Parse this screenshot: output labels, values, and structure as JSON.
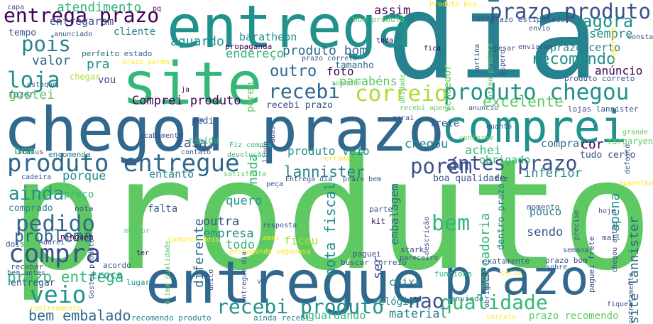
{
  "palette": {
    "dark_purple": "#440154",
    "indigo": "#3b528b",
    "slate_blue": "#31688e",
    "teal": "#21918c",
    "sea_green": "#26828e",
    "green": "#5ec962",
    "bright_green": "#35b779",
    "yellow_green": "#addc30",
    "yellow": "#fde725",
    "background": "#ffffff"
  },
  "words": [
    {
      "text": "produto",
      "weight": 1.0,
      "color": "#5ec962"
    },
    {
      "text": "dia",
      "weight": 0.98,
      "color": "#26828e"
    },
    {
      "text": "entregue",
      "weight": 0.6,
      "color": "#31688e"
    },
    {
      "text": "chegou prazo",
      "weight": 0.58,
      "color": "#31688e"
    },
    {
      "text": "entrega",
      "weight": 0.52,
      "color": "#21918c"
    },
    {
      "text": "prazo",
      "weight": 0.52,
      "color": "#31688e"
    },
    {
      "text": "site",
      "weight": 0.5,
      "color": "#35b779"
    },
    {
      "text": "comprei",
      "weight": 0.48,
      "color": "#21918c"
    },
    {
      "text": "produto chegou",
      "weight": 0.28,
      "color": "#21918c"
    },
    {
      "text": "produto entregue",
      "weight": 0.28,
      "color": "#31688e"
    },
    {
      "text": "entrega prazo",
      "weight": 0.25,
      "color": "#440154"
    },
    {
      "text": "prazo produto",
      "weight": 0.23,
      "color": "#3b528b"
    },
    {
      "text": "compra",
      "weight": 0.23,
      "color": "#3b528b"
    },
    {
      "text": "veio",
      "weight": 0.22,
      "color": "#21918c"
    },
    {
      "text": "recebi",
      "weight": 0.22,
      "color": "#31688e"
    },
    {
      "text": "recebi produto",
      "weight": 0.22,
      "color": "#21918c"
    },
    {
      "text": "correio",
      "weight": 0.21,
      "color": "#addc30"
    },
    {
      "text": "qualidade",
      "weight": 0.2,
      "color": "#35b779"
    },
    {
      "text": "pedido",
      "weight": 0.2,
      "color": "#31688e"
    },
    {
      "text": "loja",
      "weight": 0.19,
      "color": "#21918c"
    },
    {
      "text": "pois",
      "weight": 0.18,
      "color": "#26828e"
    },
    {
      "text": "ainda",
      "weight": 0.17,
      "color": "#21918c"
    },
    {
      "text": "porém",
      "weight": 0.17,
      "color": "#3b528b"
    },
    {
      "text": "antes prazo",
      "weight": 0.16,
      "color": "#3b528b"
    },
    {
      "text": "bem",
      "weight": 0.16,
      "color": "#35b779"
    },
    {
      "text": "nao",
      "weight": 0.16,
      "color": "#3b528b"
    },
    {
      "text": "agora",
      "weight": 0.15,
      "color": "#21918c"
    },
    {
      "text": "recomendo",
      "weight": 0.14,
      "color": "#21918c"
    },
    {
      "text": "bem embalado",
      "weight": 0.13,
      "color": "#31688e"
    },
    {
      "text": "problema",
      "weight": 0.13,
      "color": "#31688e"
    },
    {
      "text": "outro",
      "weight": 0.13,
      "color": "#31688e"
    },
    {
      "text": "excelente",
      "weight": 0.12,
      "color": "#5ec962"
    },
    {
      "text": "lannister",
      "weight": 0.12,
      "color": "#26828e"
    },
    {
      "text": "prazo entrega",
      "weight": 0.12,
      "color": "#35b779"
    },
    {
      "text": "nota fiscal",
      "weight": 0.12,
      "color": "#21918c"
    },
    {
      "text": "diferente",
      "weight": 0.12,
      "color": "#31688e"
    },
    {
      "text": "atendimento",
      "weight": 0.11,
      "color": "#35b779"
    },
    {
      "text": "assim",
      "weight": 0.11,
      "color": "#440154"
    },
    {
      "text": "pra",
      "weight": 0.11,
      "color": "#21918c"
    },
    {
      "text": "valor",
      "weight": 0.11,
      "color": "#31688e"
    },
    {
      "text": "gostei",
      "weight": 0.11,
      "color": "#5ec962"
    },
    {
      "text": "Comprei produto",
      "weight": 0.11,
      "color": "#440154"
    },
    {
      "text": "aguardo",
      "weight": 0.11,
      "color": "#21918c"
    },
    {
      "text": "entregaram",
      "weight": 0.11,
      "color": "#3b528b"
    },
    {
      "text": "produto bom",
      "weight": 0.11,
      "color": "#31688e"
    },
    {
      "text": "foto",
      "weight": 0.11,
      "color": "#440154"
    },
    {
      "text": "parabéns",
      "weight": 0.11,
      "color": "#5ec962"
    },
    {
      "text": "sempre",
      "weight": 0.11,
      "color": "#21918c"
    },
    {
      "text": "anúncio",
      "weight": 0.11,
      "color": "#440154"
    },
    {
      "text": "produto veio",
      "weight": 0.1,
      "color": "#21918c"
    },
    {
      "text": "inferior",
      "weight": 0.1,
      "color": "#26828e"
    },
    {
      "text": "apena",
      "weight": 0.1,
      "color": "#21918c"
    },
    {
      "text": "site lannister",
      "weight": 0.1,
      "color": "#31688e"
    },
    {
      "text": "mercadoria",
      "weight": 0.1,
      "color": "#35b779"
    },
    {
      "text": "embalagem",
      "weight": 0.1,
      "color": "#31688e"
    },
    {
      "text": "casa",
      "weight": 0.1,
      "color": "#3b528b"
    },
    {
      "text": "chegou",
      "weight": 0.1,
      "color": "#26828e"
    },
    {
      "text": "achei",
      "weight": 0.1,
      "color": "#35b779"
    },
    {
      "text": "material",
      "weight": 0.1,
      "color": "#26828e"
    },
    {
      "text": "aguardando",
      "weight": 0.09,
      "color": "#35b779"
    },
    {
      "text": "empresa",
      "weight": 0.09,
      "color": "#21918c"
    },
    {
      "text": "todo",
      "weight": 0.09,
      "color": "#35b779"
    },
    {
      "text": "outra",
      "weight": 0.09,
      "color": "#3b528b"
    },
    {
      "text": "quero",
      "weight": 0.09,
      "color": "#21918c"
    },
    {
      "text": "ficou",
      "weight": 0.09,
      "color": "#addc30"
    },
    {
      "text": "sendo",
      "weight": 0.09,
      "color": "#3b528b"
    },
    {
      "text": "pouco",
      "weight": 0.08,
      "color": "#26828e"
    },
    {
      "text": "cor",
      "weight": 0.08,
      "color": "#440154"
    },
    {
      "text": "obrigado",
      "weight": 0.08,
      "color": "#35b779"
    },
    {
      "text": "endereço",
      "weight": 0.08,
      "color": "#35b779"
    },
    {
      "text": "entanto",
      "weight": 0.08,
      "color": "#26828e"
    },
    {
      "text": "porque",
      "weight": 0.08,
      "color": "#21918c"
    },
    {
      "text": "caixa",
      "weight": 0.08,
      "color": "#26828e"
    },
    {
      "text": "ser",
      "weight": 0.08,
      "color": "#3b528b"
    },
    {
      "text": "nada",
      "weight": 0.08,
      "color": "#35b779"
    },
    {
      "text": "porem",
      "weight": 0.08,
      "color": "#5ec962"
    },
    {
      "text": "vendedor",
      "weight": 0.08,
      "color": "#5ec962"
    },
    {
      "text": "baratheon",
      "weight": 0.08,
      "color": "#21918c"
    },
    {
      "text": "tamanho",
      "weight": 0.08,
      "color": "#31688e"
    },
    {
      "text": "prazo certo",
      "weight": 0.08,
      "color": "#26828e"
    },
    {
      "text": "prazo recomendo",
      "weight": 0.08,
      "color": "#5ec962"
    },
    {
      "text": "relógio",
      "weight": 0.08,
      "color": "#21918c"
    },
    {
      "text": "comprado",
      "weight": 0.07,
      "color": "#26828e"
    },
    {
      "text": "cliente",
      "weight": 0.07,
      "color": "#26828e"
    },
    {
      "text": "tempo",
      "weight": 0.07,
      "color": "#3b528b"
    },
    {
      "text": "vou",
      "weight": 0.07,
      "color": "#3b528b"
    },
    {
      "text": "bom",
      "weight": 0.07,
      "color": "#35b779"
    },
    {
      "text": "preço",
      "weight": 0.07,
      "color": "#35b779"
    },
    {
      "text": "pedi",
      "weight": 0.07,
      "color": "#3b528b"
    },
    {
      "text": "falta",
      "weight": 0.07,
      "color": "#3b528b"
    },
    {
      "text": "rápido",
      "weight": 0.06,
      "color": "#35b779"
    },
    {
      "text": "comprar",
      "weight": 0.07,
      "color": "#31688e"
    },
    {
      "text": "frete",
      "weight": 0.07,
      "color": "#3b528b"
    },
    {
      "text": "tudo certo",
      "weight": 0.06,
      "color": "#3b528b"
    },
    {
      "text": "troca",
      "weight": 0.06,
      "color": "#21918c"
    },
    {
      "text": "entregar",
      "weight": 0.06,
      "color": "#3b528b"
    },
    {
      "text": "chegar",
      "weight": 0.06,
      "color": "#addc30"
    },
    {
      "text": "fazer",
      "weight": 0.06,
      "color": "#31688e"
    },
    {
      "text": "perfeito estado",
      "weight": 0.06,
      "color": "#31688e"
    },
    {
      "text": "targaryen",
      "weight": 0.06,
      "color": "#5ec962"
    },
    {
      "text": "dentro prazo",
      "weight": 0.06,
      "color": "#26828e"
    },
    {
      "text": "boa qualidade",
      "weight": 0.06,
      "color": "#3b528b"
    },
    {
      "text": "recebi prazo",
      "weight": 0.06,
      "color": "#3b528b"
    },
    {
      "text": "encomenda",
      "weight": 0.05,
      "color": "#26828e"
    },
    {
      "text": "momento",
      "weight": 0.05,
      "color": "#3b528b"
    },
    {
      "text": "produto correto",
      "weight": 0.05,
      "color": "#3b528b"
    },
    {
      "text": "stark",
      "weight": 0.05,
      "color": "#3b528b"
    },
    {
      "text": "exatamente",
      "weight": 0.05,
      "color": "#3b528b"
    },
    {
      "text": "prazo bom",
      "weight": 0.05,
      "color": "#3b528b"
    },
    {
      "text": "buscar correio",
      "weight": 0.05,
      "color": "#3b528b"
    },
    {
      "text": "paguei frete",
      "weight": 0.05,
      "color": "#3b528b"
    },
    {
      "text": "funciona",
      "weight": 0.05,
      "color": "#35b779"
    },
    {
      "text": "enviado",
      "weight": 0.05,
      "color": "#26828e"
    },
    {
      "text": "ainda recebi",
      "weight": 0.05,
      "color": "#26828e"
    },
    {
      "text": "recomendo produto",
      "weight": 0.05,
      "color": "#26828e"
    },
    {
      "text": "prazo estipulado",
      "weight": 0.05,
      "color": "#3b528b"
    },
    {
      "text": "bom produto",
      "weight": 0.05,
      "color": "#5ec962"
    },
    {
      "text": "lojas lannister",
      "weight": 0.05,
      "color": "#3b528b"
    },
    {
      "text": "propaganda",
      "weight": 0.05,
      "color": "#440154"
    },
    {
      "text": "acordo",
      "weight": 0.05,
      "color": "#3b528b"
    },
    {
      "text": "lugar",
      "weight": 0.05,
      "color": "#21918c"
    },
    {
      "text": "receber",
      "weight": 0.05,
      "color": "#3b528b"
    },
    {
      "text": "dois",
      "weight": 0.05,
      "color": "#3b528b"
    },
    {
      "text": "ninguém",
      "weight": 0.05,
      "color": "#440154"
    },
    {
      "text": "nota",
      "weight": 0.05,
      "color": "#3b528b"
    },
    {
      "text": "kit",
      "weight": 0.05,
      "color": "#440154"
    },
    {
      "text": "parte",
      "weight": 0.05,
      "color": "#3b528b"
    },
    {
      "text": "paguei",
      "weight": 0.05,
      "color": "#3b528b"
    },
    {
      "text": "mail",
      "weight": 0.05,
      "color": "#3b528b"
    },
    {
      "text": "fiz",
      "weight": 0.05,
      "color": "#3b528b"
    },
    {
      "text": "peça",
      "weight": 0.05,
      "color": "#3b528b"
    },
    {
      "text": "capa",
      "weight": 0.04,
      "color": "#3b528b"
    },
    {
      "text": "pq",
      "weight": 0.04,
      "color": "#440154"
    },
    {
      "text": "anunciado",
      "weight": 0.04,
      "color": "#3b528b"
    },
    {
      "text": "Produto boa",
      "weight": 0.04,
      "color": "#fde725"
    },
    {
      "text": "tudo",
      "weight": 0.04,
      "color": "#3b528b"
    },
    {
      "text": "envio",
      "weight": 0.04,
      "color": "#3b528b"
    },
    {
      "text": "consta",
      "weight": 0.04,
      "color": "#3b528b"
    },
    {
      "text": "esperava",
      "weight": 0.04,
      "color": "#fde725"
    },
    {
      "text": "Apesar",
      "weight": 0.04,
      "color": "#3b528b"
    },
    {
      "text": "enviaram",
      "weight": 0.04,
      "color": "#3b528b"
    },
    {
      "text": "Espero",
      "weight": 0.04,
      "color": "#3b528b"
    },
    {
      "text": "fica",
      "weight": 0.04,
      "color": "#440154"
    },
    {
      "text": "toda",
      "weight": 0.04,
      "color": "#440154"
    },
    {
      "text": "prazo correto",
      "weight": 0.04,
      "color": "#3b528b"
    },
    {
      "text": "prazo porém",
      "weight": 0.04,
      "color": "#fde725"
    },
    {
      "text": "estoque",
      "weight": 0.04,
      "color": "#3b528b"
    },
    {
      "text": "ja",
      "weight": 0.04,
      "color": "#440154"
    },
    {
      "text": "somente",
      "weight": 0.04,
      "color": "#5ec962"
    },
    {
      "text": "unidade",
      "weight": 0.04,
      "color": "#5ec962"
    },
    {
      "text": "recebi apenas",
      "weight": 0.04,
      "color": "#5ec962"
    },
    {
      "text": "anuncio",
      "weight": 0.04,
      "color": "#3b528b"
    },
    {
      "text": "quanto",
      "weight": 0.04,
      "color": "#3b528b"
    },
    {
      "text": "conforme",
      "weight": 0.04,
      "color": "#5ec962"
    },
    {
      "text": "grande",
      "weight": 0.04,
      "color": "#5ec962"
    },
    {
      "text": "defeito",
      "weight": 0.04,
      "color": "#3b528b"
    },
    {
      "text": "contato",
      "weight": 0.04,
      "color": "#3b528b"
    },
    {
      "text": "Fiz compra",
      "weight": 0.04,
      "color": "#35b779"
    },
    {
      "text": "devolução",
      "weight": 0.04,
      "color": "#35b779"
    },
    {
      "text": "errado",
      "weight": 0.04,
      "color": "#fde725"
    },
    {
      "text": "gerai",
      "weight": 0.04,
      "color": "#3b528b"
    },
    {
      "text": "status",
      "weight": 0.04,
      "color": "#3b528b"
    },
    {
      "text": "acabamento",
      "weight": 0.04,
      "color": "#3b528b"
    },
    {
      "text": "cadeira",
      "weight": 0.04,
      "color": "#3b528b"
    },
    {
      "text": "satisfeita",
      "weight": 0.04,
      "color": "#5ec962"
    },
    {
      "text": "Entrega dia",
      "weight": 0.04,
      "color": "#3b528b"
    },
    {
      "text": "prazo bem",
      "weight": 0.04,
      "color": "#3b528b"
    },
    {
      "text": "aparelho",
      "weight": 0.04,
      "color": "#fde725"
    },
    {
      "text": "melhor",
      "weight": 0.04,
      "color": "#5ec962"
    },
    {
      "text": "Adorei",
      "weight": 0.04,
      "color": "#3b528b"
    },
    {
      "text": "ter",
      "weight": 0.04,
      "color": "#440154"
    },
    {
      "text": "Comprei dois",
      "weight": 0.04,
      "color": "#fde725"
    },
    {
      "text": "propaganda enganosa",
      "weight": 0.04,
      "color": "#fde725"
    },
    {
      "text": "semana",
      "weight": 0.04,
      "color": "#3b528b"
    },
    {
      "text": "hoje",
      "weight": 0.04,
      "color": "#3b528b"
    },
    {
      "text": "resposta",
      "weight": 0.04,
      "color": "#3b528b"
    },
    {
      "text": "amei",
      "weight": 0.04,
      "color": "#fde725"
    },
    {
      "text": "bem antes",
      "weight": 0.04,
      "color": "#3b528b"
    },
    {
      "text": "rastreamento",
      "weight": 0.04,
      "color": "#fde725"
    },
    {
      "text": "vc",
      "weight": 0.04,
      "color": "#3b528b"
    },
    {
      "text": "certo",
      "weight": 0.04,
      "color": "#fde725"
    },
    {
      "text": "sobre",
      "weight": 0.04,
      "color": "#3b528b"
    },
    {
      "text": "fiquei",
      "weight": 0.04,
      "color": "#3b528b"
    },
    {
      "text": "correto",
      "weight": 0.04,
      "color": "#fde725"
    },
    {
      "text": "cortina",
      "weight": 0.04,
      "color": "#3b528b"
    },
    {
      "text": "ótimo produto",
      "weight": 0.04,
      "color": "#5ec962"
    },
    {
      "text": "ótima qualidade",
      "weight": 0.04,
      "color": "#5ec962"
    },
    {
      "text": "Gostei produto",
      "weight": 0.04,
      "color": "#3b528b"
    },
    {
      "text": "entregue dia",
      "weight": 0.04,
      "color": "#3b528b"
    },
    {
      "text": "lindo",
      "weight": 0.04,
      "color": "#3b528b"
    },
    {
      "text": "duas",
      "weight": 0.04,
      "color": "#3b528b"
    },
    {
      "text": "preciso",
      "weight": 0.04,
      "color": "#3b528b"
    },
    {
      "text": "corretamente",
      "weight": 0.04,
      "color": "#3b528b"
    },
    {
      "text": "chegou antes",
      "weight": 0.04,
      "color": "#3b528b"
    },
    {
      "text": "descrição",
      "weight": 0.04,
      "color": "#3b528b"
    },
    {
      "text": "obrigada",
      "weight": 0.04,
      "color": "#3b528b"
    },
    {
      "text": "so",
      "weight": 0.04,
      "color": "#3b528b"
    },
    {
      "text": "diz",
      "weight": 0.04,
      "color": "#3b528b"
    },
    {
      "text": "pareceiro",
      "weight": 0.04,
      "color": "#3b528b"
    },
    {
      "text": "único",
      "weight": 0.04,
      "color": "#3b528b"
    },
    {
      "text": "vez",
      "weight": 0.04,
      "color": "#3b528b"
    }
  ]
}
